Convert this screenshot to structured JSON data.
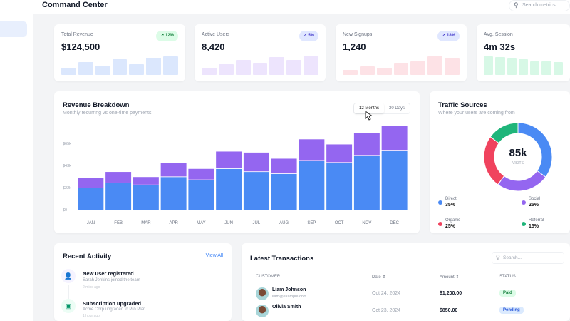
{
  "header": {
    "title": "Command Center",
    "search_placeholder": "Search metrics..."
  },
  "kpis": [
    {
      "label": "Total Revenue",
      "value": "$124,500",
      "change": "12%",
      "color": "#dbe7fd",
      "badge_bg": "#dcfce7",
      "badge_fg": "#15803d",
      "bars": [
        9,
        17,
        12,
        20,
        14,
        22,
        24
      ]
    },
    {
      "label": "Active Users",
      "value": "8,420",
      "change": "5%",
      "color": "#ede4fd",
      "badge_bg": "#e0e7ff",
      "badge_fg": "#4338ca",
      "bars": [
        7,
        11,
        15,
        12,
        18,
        15,
        19
      ]
    },
    {
      "label": "New Signups",
      "value": "1,240",
      "change": "18%",
      "color": "#fde2e6",
      "badge_bg": "#e0e7ff",
      "badge_fg": "#4338ca",
      "bars": [
        5,
        9,
        7,
        12,
        14,
        19,
        17
      ]
    },
    {
      "label": "Avg. Session",
      "value": "4m 32s",
      "change": "",
      "color": "#d7f8e6",
      "bars": [
        19,
        18,
        17,
        16,
        14,
        14,
        13
      ]
    }
  ],
  "revenue": {
    "title": "Revenue Breakdown",
    "subtitle": "Monthly recurring vs one-time payments",
    "toggle": [
      "12 Months",
      "30 Days"
    ],
    "selected": "12 Months"
  },
  "chart_data": {
    "type": "bar",
    "stacked": true,
    "categories": [
      "JAN",
      "FEB",
      "MAR",
      "APR",
      "MAY",
      "JUN",
      "JUL",
      "AUG",
      "SEP",
      "OCT",
      "NOV",
      "DEC"
    ],
    "series": [
      {
        "values": [
          22,
          27,
          25,
          33,
          30,
          41,
          38,
          36,
          49,
          47,
          54,
          59
        ],
        "color": "#4a8af4"
      },
      {
        "values": [
          10,
          11,
          8,
          14,
          11,
          17,
          19,
          15,
          21,
          18,
          22,
          24
        ],
        "color": "#9466f0"
      }
    ],
    "yticks": [
      "$0",
      "$22k",
      "$43k",
      "$65k"
    ],
    "ytick_values": [
      0,
      21.7,
      43.3,
      65
    ],
    "ylim": [
      0,
      85
    ],
    "unit": "k USD"
  },
  "traffic": {
    "title": "Traffic Sources",
    "subtitle": "Where your users are coming from",
    "center_value": "85k",
    "center_label": "VISITS",
    "sources": [
      {
        "name": "Direct",
        "pct": "35%",
        "value": 35,
        "color": "#4a8af4"
      },
      {
        "name": "Social",
        "pct": "25%",
        "value": 25,
        "color": "#9466f0"
      },
      {
        "name": "Organic",
        "pct": "25%",
        "value": 25,
        "color": "#f0435e"
      },
      {
        "name": "Referral",
        "pct": "15%",
        "value": 15,
        "color": "#1fb57a"
      }
    ]
  },
  "activity": {
    "title": "Recent Activity",
    "view_all": "View All",
    "items": [
      {
        "title": "New user registered",
        "desc": "Sarah Jenkins joined the team",
        "time": "2 mins ago"
      },
      {
        "title": "Subscription upgraded",
        "desc": "Acme Corp upgraded to Pro Plan",
        "time": "1 hour ago"
      }
    ]
  },
  "transactions": {
    "title": "Latest Transactions",
    "search_placeholder": "Search...",
    "columns": [
      "CUSTOMER",
      "Date",
      "Amount",
      "STATUS"
    ],
    "rows": [
      {
        "name": "Liam Johnson",
        "email": "liam@example.com",
        "date": "Oct 24, 2024",
        "amount": "$1,200.00",
        "status": "Paid"
      },
      {
        "name": "Olivia Smith",
        "email": "",
        "date": "Oct 23, 2024",
        "amount": "$850.00",
        "status": "Pending"
      }
    ]
  }
}
